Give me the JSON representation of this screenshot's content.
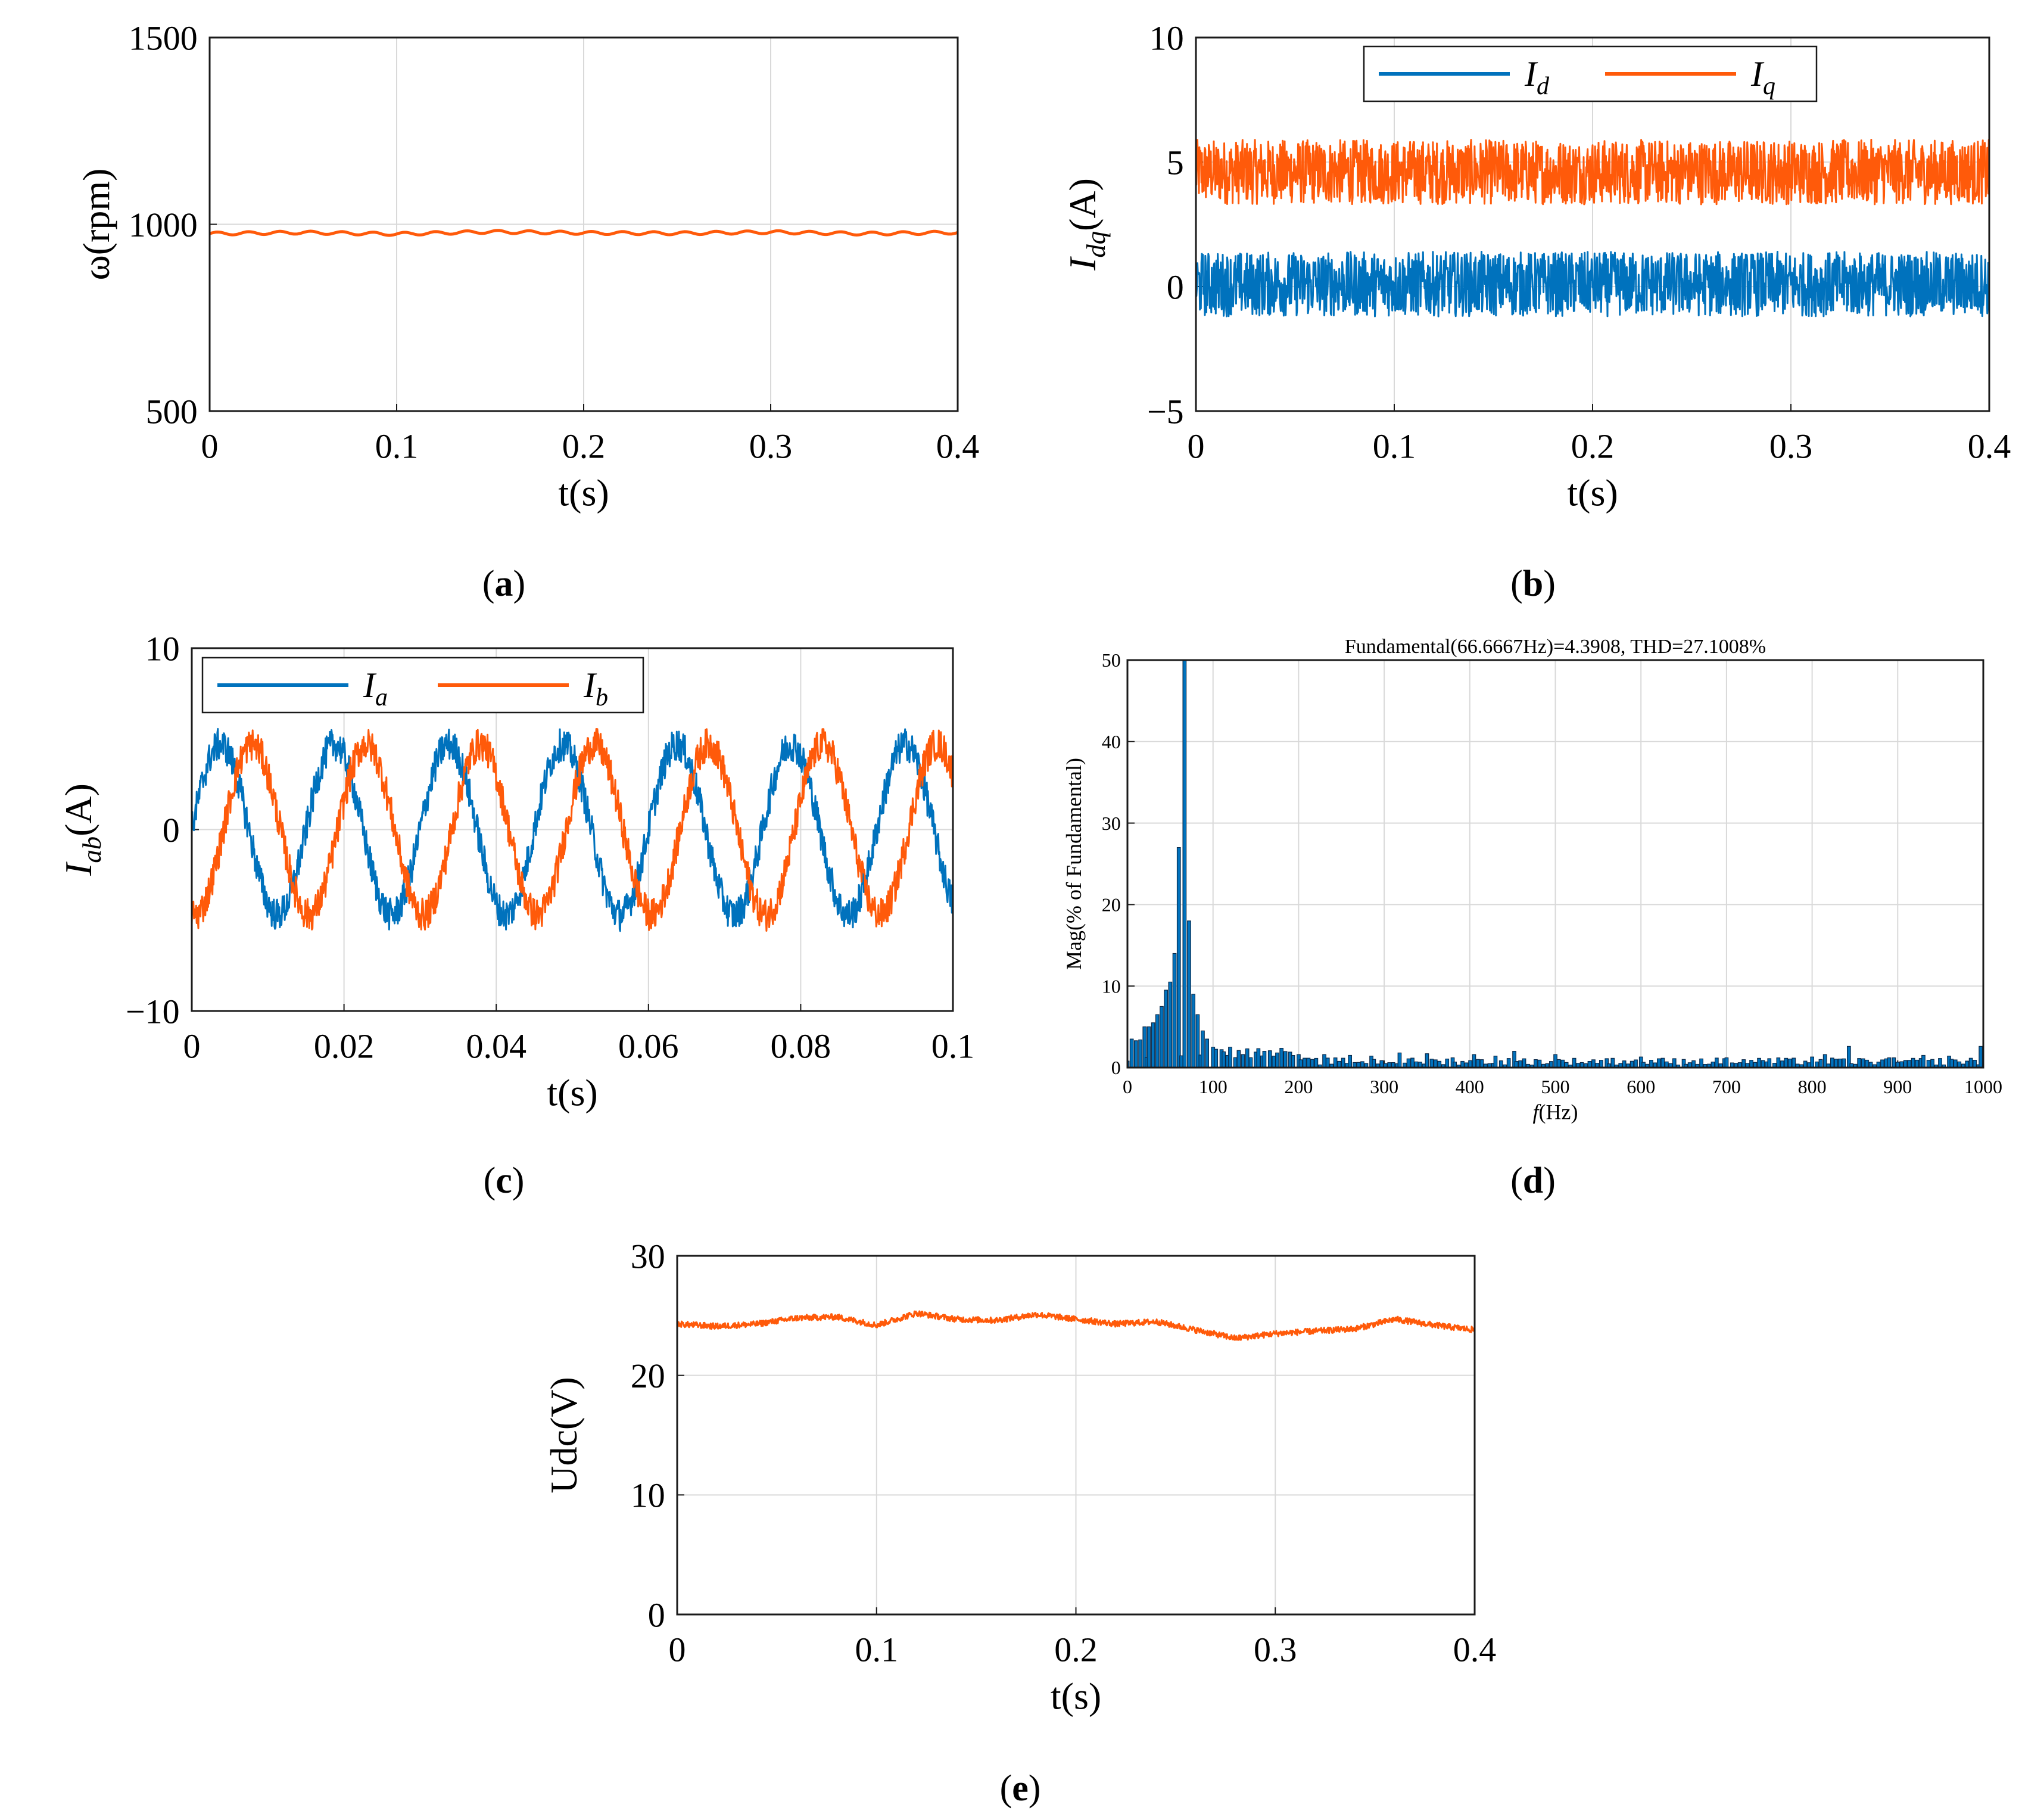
{
  "colors": {
    "blue": "#0072BD",
    "orange": "#FF5A0A",
    "bar_fill": "#0072BD",
    "bar_edge": "#0b2a4a"
  },
  "chart_data": [
    {
      "id": "a",
      "type": "line",
      "caption": "(a)",
      "ylabel": "ω(rpm)",
      "xlabel": "t(s)",
      "xlim": [
        0,
        0.4
      ],
      "ylim": [
        500,
        1500
      ],
      "xticks": [
        "0",
        "0.1",
        "0.2",
        "0.3",
        "0.4"
      ],
      "yticks": [
        "500",
        "1000",
        "1500"
      ],
      "grid": true,
      "series": [
        {
          "name": "ω",
          "color": "#FF5A0A",
          "x": [
            0,
            0.05,
            0.1,
            0.15,
            0.2,
            0.25,
            0.3,
            0.35,
            0.4
          ],
          "y": [
            975,
            978,
            974,
            980,
            977,
            976,
            979,
            975,
            978
          ]
        }
      ]
    },
    {
      "id": "b",
      "type": "line",
      "caption": "(b)",
      "ylabel": "I",
      "ylabel_sub": "dq",
      "ylabel_suffix": "(A)",
      "xlabel": "t(s)",
      "xlim": [
        0,
        0.4
      ],
      "ylim": [
        -5,
        10
      ],
      "xticks": [
        "0",
        "0.1",
        "0.2",
        "0.3",
        "0.4"
      ],
      "yticks": [
        "−5",
        "0",
        "5",
        "10"
      ],
      "grid": true,
      "legend": {
        "placement": "top",
        "entries": [
          {
            "label": "I",
            "sub": "d",
            "color": "#0072BD"
          },
          {
            "label": "I",
            "sub": "q",
            "color": "#FF5A0A"
          }
        ]
      },
      "series": [
        {
          "name": "Iq",
          "color": "#FF5A0A",
          "x": [
            0,
            0.1,
            0.2,
            0.3,
            0.4
          ],
          "y": [
            4.6,
            4.6,
            4.6,
            4.6,
            4.6
          ],
          "noise": 1.3
        },
        {
          "name": "Id",
          "color": "#0072BD",
          "x": [
            0,
            0.1,
            0.2,
            0.3,
            0.4
          ],
          "y": [
            0.1,
            0.1,
            0.1,
            0.1,
            0.1
          ],
          "noise": 1.3
        }
      ]
    },
    {
      "id": "c",
      "type": "line",
      "caption": "(c)",
      "ylabel": "I",
      "ylabel_sub": "ab",
      "ylabel_suffix": "(A)",
      "xlabel": "t(s)",
      "xlim": [
        0,
        0.1
      ],
      "ylim": [
        -10,
        10
      ],
      "xticks": [
        "0",
        "0.02",
        "0.04",
        "0.06",
        "0.08",
        "0.1"
      ],
      "yticks": [
        "−10",
        "0",
        "10"
      ],
      "grid": true,
      "legend": {
        "placement": "top-left",
        "entries": [
          {
            "label": "I",
            "sub": "a",
            "color": "#0072BD"
          },
          {
            "label": "I",
            "sub": "b",
            "color": "#FF5A0A"
          }
        ]
      },
      "series": [
        {
          "name": "Ia",
          "color": "#0072BD",
          "amplitude": 4.7,
          "frequency_hz": 66.6667,
          "phase_deg": 0,
          "noise": 0.9
        },
        {
          "name": "Ib",
          "color": "#FF5A0A",
          "amplitude": 4.7,
          "frequency_hz": 66.6667,
          "phase_deg": -100,
          "noise": 0.9
        }
      ]
    },
    {
      "id": "d",
      "type": "bar",
      "caption": "(d)",
      "title": "Fundamental(66.6667Hz)=4.3908, THD=27.1008%",
      "ylabel": "Mag(% of Fundamental)",
      "xlabel_italic": "f",
      "xlabel_rest": "(Hz)",
      "xlim": [
        0,
        1000
      ],
      "ylim": [
        0,
        50
      ],
      "xticks": [
        "0",
        "100",
        "200",
        "300",
        "400",
        "500",
        "600",
        "700",
        "800",
        "900",
        "1000"
      ],
      "yticks": [
        "0",
        "10",
        "20",
        "30",
        "40",
        "50"
      ],
      "grid": true,
      "bin_width_hz": 4.5,
      "peaks": [
        {
          "f": 0,
          "v": 0.8
        },
        {
          "f": 5,
          "v": 3.5
        },
        {
          "f": 10,
          "v": 3.3
        },
        {
          "f": 15,
          "v": 3.4
        },
        {
          "f": 20,
          "v": 5.0
        },
        {
          "f": 25,
          "v": 5.0
        },
        {
          "f": 30,
          "v": 5.5
        },
        {
          "f": 35,
          "v": 6.5
        },
        {
          "f": 40,
          "v": 7.5
        },
        {
          "f": 45,
          "v": 9.5
        },
        {
          "f": 50,
          "v": 10.5
        },
        {
          "f": 55,
          "v": 14.0
        },
        {
          "f": 60,
          "v": 27.0
        },
        {
          "f": 66.67,
          "v": 50
        },
        {
          "f": 72,
          "v": 18.0
        },
        {
          "f": 77,
          "v": 9.0
        },
        {
          "f": 82,
          "v": 6.5
        },
        {
          "f": 88,
          "v": 4.5
        },
        {
          "f": 93,
          "v": 3.5
        },
        {
          "f": 100,
          "v": 2.5
        },
        {
          "f": 110,
          "v": 2.2
        },
        {
          "f": 120,
          "v": 2.5
        },
        {
          "f": 130,
          "v": 2.1
        },
        {
          "f": 140,
          "v": 2.3
        },
        {
          "f": 150,
          "v": 1.9
        },
        {
          "f": 160,
          "v": 2.0
        },
        {
          "f": 175,
          "v": 1.8
        },
        {
          "f": 190,
          "v": 1.9
        },
        {
          "f": 200,
          "v": 1.6
        },
        {
          "f": 230,
          "v": 1.6
        },
        {
          "f": 260,
          "v": 1.5
        },
        {
          "f": 285,
          "v": 1.4
        },
        {
          "f": 318,
          "v": 1.8
        },
        {
          "f": 350,
          "v": 1.7
        },
        {
          "f": 380,
          "v": 1.2
        },
        {
          "f": 405,
          "v": 1.6
        },
        {
          "f": 430,
          "v": 1.4
        },
        {
          "f": 452,
          "v": 2.0
        },
        {
          "f": 500,
          "v": 1.6
        },
        {
          "f": 560,
          "v": 1.1
        },
        {
          "f": 600,
          "v": 1.3
        },
        {
          "f": 650,
          "v": 1.0
        },
        {
          "f": 700,
          "v": 1.2
        },
        {
          "f": 750,
          "v": 1.1
        },
        {
          "f": 800,
          "v": 1.3
        },
        {
          "f": 815,
          "v": 1.6
        },
        {
          "f": 843,
          "v": 2.6
        },
        {
          "f": 890,
          "v": 1.2
        },
        {
          "f": 930,
          "v": 1.5
        },
        {
          "f": 960,
          "v": 1.4
        },
        {
          "f": 997,
          "v": 2.6
        }
      ]
    },
    {
      "id": "e",
      "type": "line",
      "caption": "(e)",
      "ylabel": "Udc(V)",
      "xlabel": "t(s)",
      "xlim": [
        0,
        0.4
      ],
      "ylim": [
        0,
        30
      ],
      "xticks": [
        "0",
        "0.1",
        "0.2",
        "0.3",
        "0.4"
      ],
      "yticks": [
        "0",
        "10",
        "20",
        "30"
      ],
      "grid": true,
      "series": [
        {
          "name": "Udc",
          "color": "#FF5A0A",
          "x": [
            0,
            0.02,
            0.04,
            0.06,
            0.08,
            0.1,
            0.12,
            0.14,
            0.16,
            0.18,
            0.2,
            0.22,
            0.24,
            0.26,
            0.28,
            0.3,
            0.32,
            0.34,
            0.36,
            0.38,
            0.4
          ],
          "y": [
            24.3,
            24.1,
            24.3,
            24.8,
            24.9,
            24.2,
            25.2,
            24.7,
            24.6,
            25.1,
            24.7,
            24.3,
            24.5,
            23.8,
            23.1,
            23.5,
            23.7,
            23.9,
            24.7,
            24.2,
            23.8
          ],
          "noise": 0.25
        }
      ]
    }
  ]
}
